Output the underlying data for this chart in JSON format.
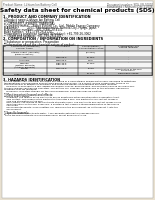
{
  "bg_color": "#e8e0d0",
  "page_bg": "#ffffff",
  "header_left": "Product Name: Lithium Ion Battery Cell",
  "header_right_line1": "Document number: SDS-LIB-00010",
  "header_right_line2": "Established / Revision: Dec.1.2016",
  "title": "Safety data sheet for chemical products (SDS)",
  "section1_title": "1. PRODUCT AND COMPANY IDENTIFICATION",
  "section1_lines": [
    "・ Product name: Lithium Ion Battery Cell",
    "・ Product code: Cylindrical-type cell",
    "    (UR18650J, UR18650L, UR18650A)",
    "・ Company name:    Sanyo Electric Co., Ltd., Mobile Energy Company",
    "・ Address:          2001, Kamionakamura, Sumoto-City, Hyogo, Japan",
    "・ Telephone number:   +81-(799)-20-4111",
    "・ Fax number:  +81-1799-26-4120",
    "・ Emergency telephone number (Weekday): +81-799-26-3062",
    "    (Night and holidays): +81-799-26-4101"
  ],
  "section2_title": "2. COMPOSITION / INFORMATION ON INGREDIENTS",
  "section2_sub": "・ Substance or preparation: Preparation",
  "section2_sub2": "・ Information about the chemical nature of product:",
  "table_headers": [
    "Component (substance)\nSeveral name",
    "CAS number",
    "Concentration /\nConcentration range",
    "Classification and\nhazard labeling"
  ],
  "table_rows": [
    [
      "Lithium cobalt (laminate)\n(LiMnxCoyNizO2)",
      "-",
      "(30-60%)",
      "-"
    ],
    [
      "Iron",
      "7439-89-6",
      "15-25%",
      "-"
    ],
    [
      "Aluminum",
      "7429-90-5",
      "2-6%",
      "-"
    ],
    [
      "Graphite\n(Natural graphite)\n(Artificial graphite)",
      "7782-42-5\n7782-44-2",
      "10-25%",
      "-"
    ],
    [
      "Copper",
      "7440-50-8",
      "5-15%",
      "Sensitization of the skin\ngroup R43.2"
    ],
    [
      "Organic electrolyte",
      "-",
      "10-20%",
      "Flammable liquids"
    ]
  ],
  "section3_title": "3. HAZARDS IDENTIFICATION",
  "section3_lines": [
    "For the battery cell, chemical materials are stored in a hermetically sealed metal case, designed to withstand",
    "temperatures and pressures encountered during normal use. As a result, during normal-use, there is no",
    "physical danger of ignition or explosion and therefore danger of hazardous materials leakage.",
    "   However, if exposed to a fire, added mechanical shocks, decomposed, armed-alarms whose my mass use,",
    "the gas release vent will be operated. The battery cell case will be breached of the extreme, hazardous",
    "materials may be released.",
    "   Moreover, if heated strongly by the surrounding fire, some gas may be emitted."
  ],
  "section3_sub1": "・ Most important hazard and effects:",
  "section3_sub1_lines": [
    "Human health effects:",
    "  Inhalation: The release of the electrolyte has an anesthesia action and stimulates a respiratory tract.",
    "  Skin contact: The release of the electrolyte stimulates a skin. The electrolyte skin contact causes a",
    "  sore and stimulation on the skin.",
    "  Eye contact: The release of the electrolyte stimulates eyes. The electrolyte eye contact causes a sore",
    "  and stimulation on the eye. Especially, a substance that causes a strong inflammation of the eyes is",
    "  contained.",
    "  Environmental effects: Since a battery cell remains in the environment, do not throw out it into the",
    "  environment."
  ],
  "section3_sub2": "・ Specific hazards:",
  "section3_sub2_lines": [
    "If the electrolyte contacts with water, it will generate detrimental hydrogen fluoride.",
    "Since the seal electrolyte is inflammable liquid, do not bring close to fire."
  ]
}
